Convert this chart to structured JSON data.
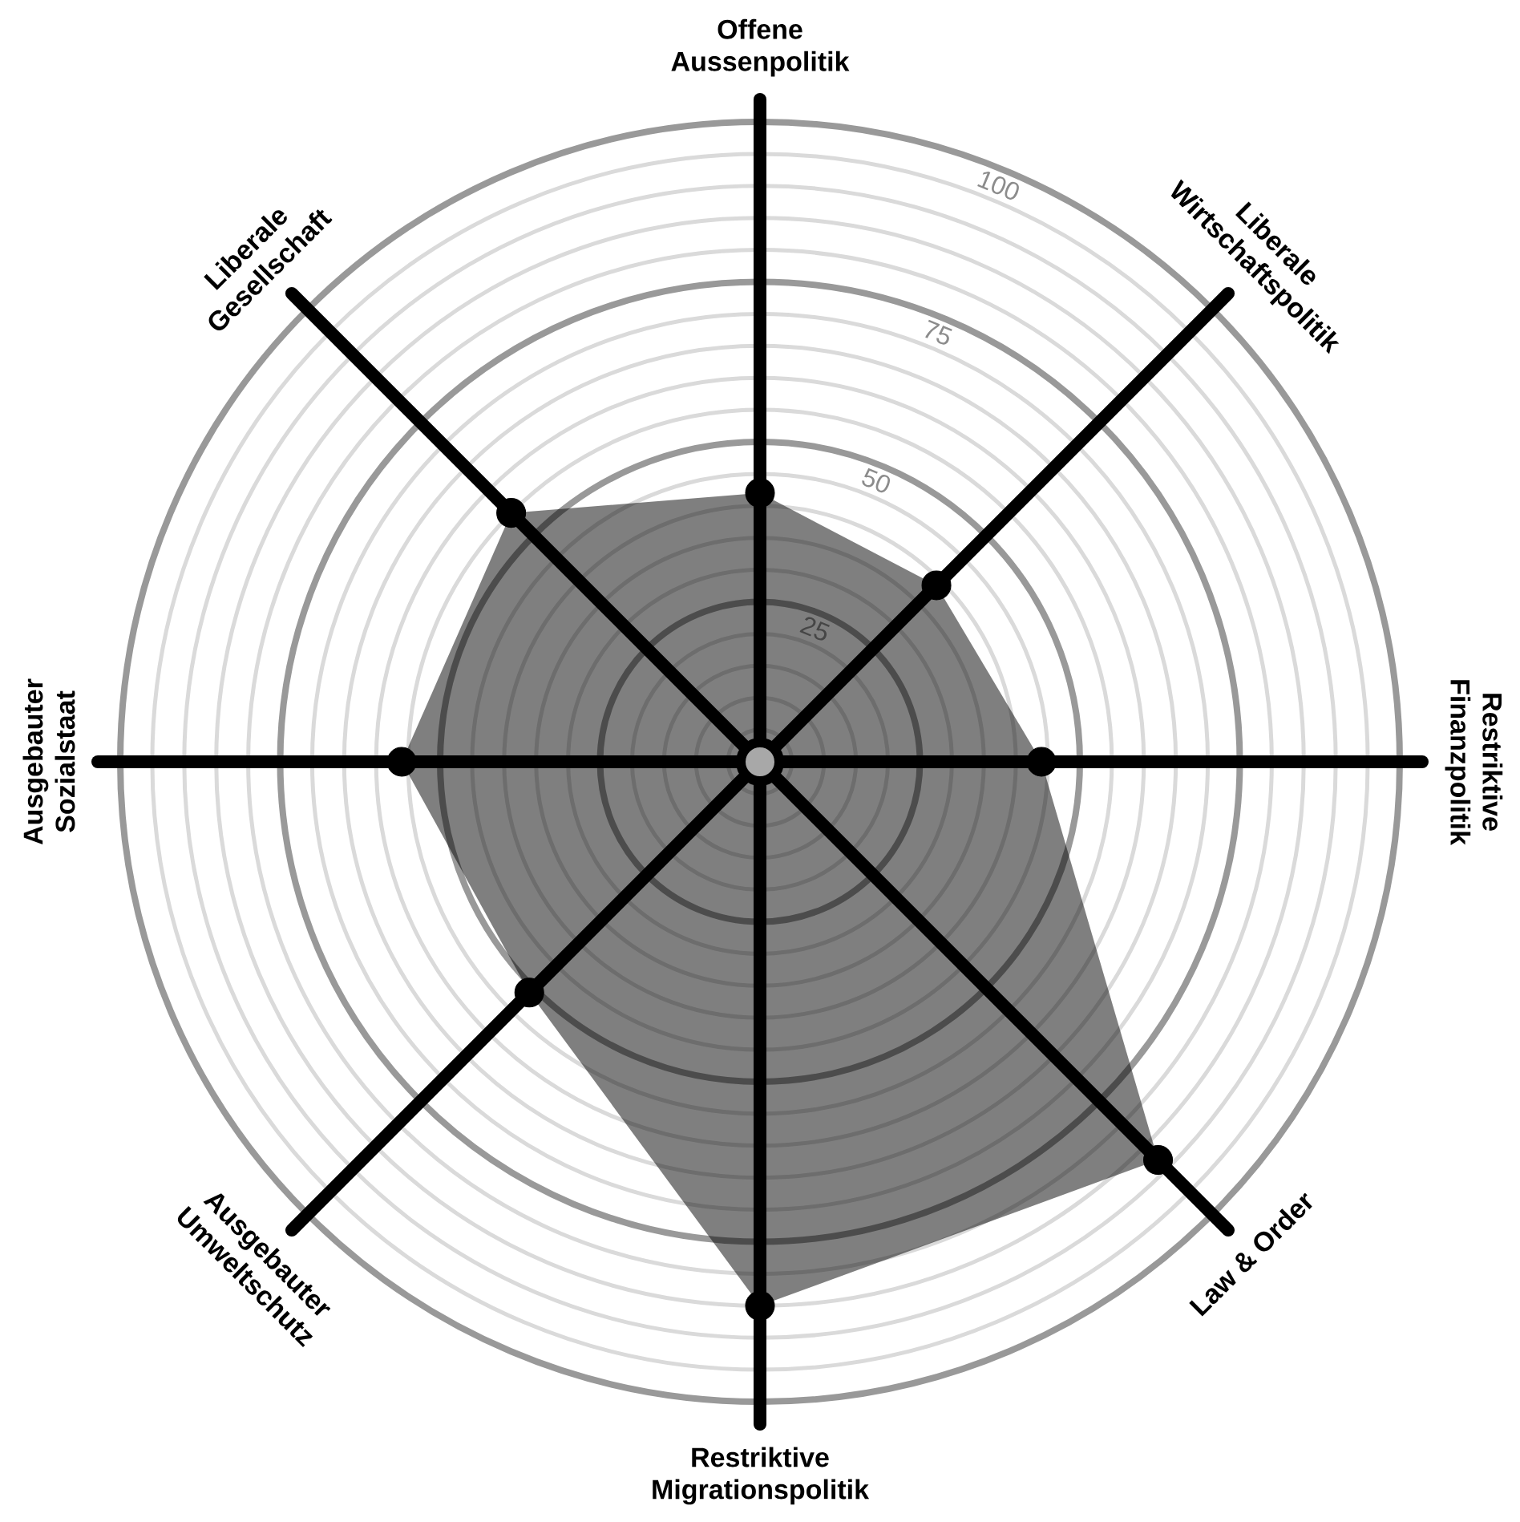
{
  "chart_data": {
    "type": "radar",
    "categories": [
      "Offene Aussenpolitik",
      "Liberale Wirtschaftspolitik",
      "Restriktive Finanzpolitik",
      "Law & Order",
      "Restriktive Migrationspolitik",
      "Ausgebauter Umweltschutz",
      "Ausgebauter Sozialstaat",
      "Liberale Gesellschaft"
    ],
    "series": [
      {
        "color": "#000000",
        "values": [
          42,
          39,
          44,
          88,
          85,
          51,
          56,
          55
        ]
      }
    ],
    "ylim": [
      0,
      100
    ],
    "yticks": [
      25,
      50,
      75,
      100
    ],
    "grid": true,
    "marker": "circle"
  }
}
